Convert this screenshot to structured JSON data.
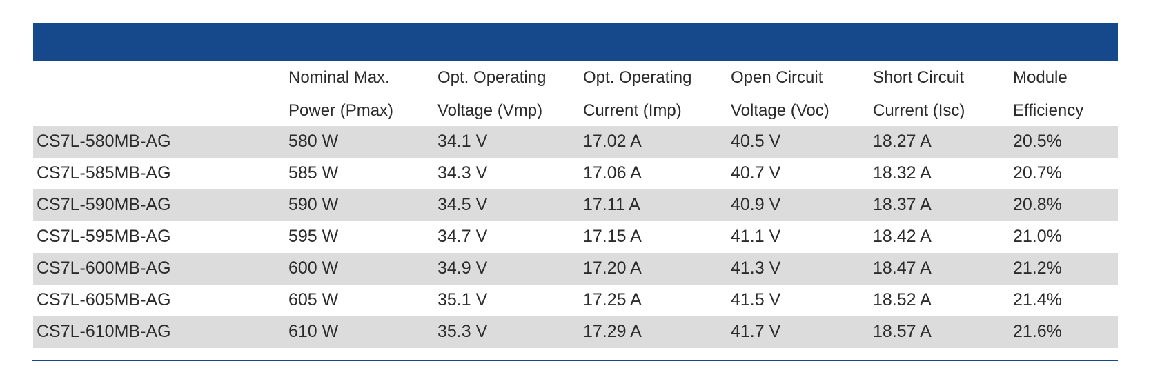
{
  "table": {
    "headers": [
      {
        "line1": "",
        "line2": ""
      },
      {
        "line1": "Nominal Max.",
        "line2": "Power (Pmax)"
      },
      {
        "line1": "Opt. Operating",
        "line2": "Voltage (Vmp)"
      },
      {
        "line1": "Opt. Operating",
        "line2": "Current (Imp)"
      },
      {
        "line1": "Open Circuit",
        "line2": "Voltage (Voc)"
      },
      {
        "line1": "Short Circuit",
        "line2": "Current (Isc)"
      },
      {
        "line1": "Module",
        "line2": "Efficiency"
      }
    ],
    "rows": [
      [
        "CS7L-580MB-AG",
        "580 W",
        "34.1 V",
        "17.02 A",
        "40.5 V",
        "18.27 A",
        "20.5%"
      ],
      [
        "CS7L-585MB-AG",
        "585 W",
        "34.3 V",
        "17.06 A",
        "40.7 V",
        "18.32 A",
        "20.7%"
      ],
      [
        "CS7L-590MB-AG",
        "590 W",
        "34.5 V",
        "17.11 A",
        "40.9 V",
        "18.37 A",
        "20.8%"
      ],
      [
        "CS7L-595MB-AG",
        "595 W",
        "34.7 V",
        "17.15 A",
        "41.1 V",
        "18.42 A",
        "21.0%"
      ],
      [
        "CS7L-600MB-AG",
        "600 W",
        "34.9 V",
        "17.20 A",
        "41.3 V",
        "18.47 A",
        "21.2%"
      ],
      [
        "CS7L-605MB-AG",
        "605 W",
        "35.1 V",
        "17.25 A",
        "41.5 V",
        "18.52 A",
        "21.4%"
      ],
      [
        "CS7L-610MB-AG",
        "610 W",
        "35.3 V",
        "17.29 A",
        "41.7 V",
        "18.57 A",
        "21.6%"
      ]
    ]
  },
  "colors": {
    "header_band": "#15498b",
    "row_shade": "#dcdcdc",
    "rule": "#15498b"
  }
}
